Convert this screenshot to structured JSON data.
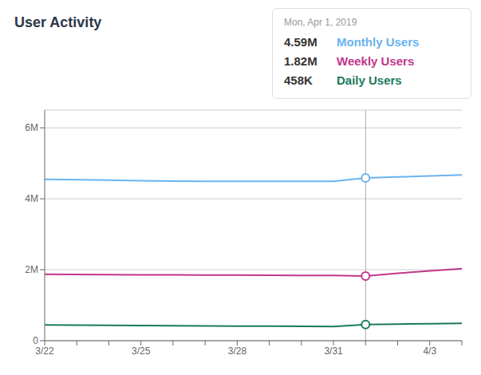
{
  "chart_data": {
    "type": "line",
    "title": "User Activity",
    "categories": [
      "3/22",
      null,
      null,
      "3/25",
      null,
      null,
      "3/28",
      null,
      null,
      "3/31",
      null,
      null,
      "4/3",
      null
    ],
    "series": [
      {
        "name": "Monthly Users",
        "color": "#6ab4f0",
        "values": [
          4550000,
          4540000,
          4525000,
          4510000,
          4500000,
          4495000,
          4492000,
          4490000,
          4490000,
          4492000,
          4590000,
          4615000,
          4645000,
          4670000
        ]
      },
      {
        "name": "Weekly Users",
        "color": "#c0378a",
        "values": [
          1870000,
          1865000,
          1860000,
          1858000,
          1855000,
          1852000,
          1848000,
          1843000,
          1840000,
          1838000,
          1820000,
          1900000,
          1970000,
          2030000
        ]
      },
      {
        "name": "Daily Users",
        "color": "#1a7a5e",
        "values": [
          445000,
          440000,
          435000,
          428000,
          420000,
          415000,
          410000,
          408000,
          405000,
          400000,
          458000,
          468000,
          478000,
          490000
        ]
      }
    ],
    "ylim": [
      0,
      6500000
    ],
    "yticks": [
      0,
      {
        "value": 2000000,
        "label": "2M"
      },
      {
        "value": 4000000,
        "label": "4M"
      },
      {
        "value": 6000000,
        "label": "6M"
      }
    ],
    "grid": true,
    "tooltip": {
      "x": 10,
      "title": "Mon, Apr 1, 2019",
      "value_labels": [
        "4.59M",
        "1.82M",
        "458K"
      ]
    }
  }
}
